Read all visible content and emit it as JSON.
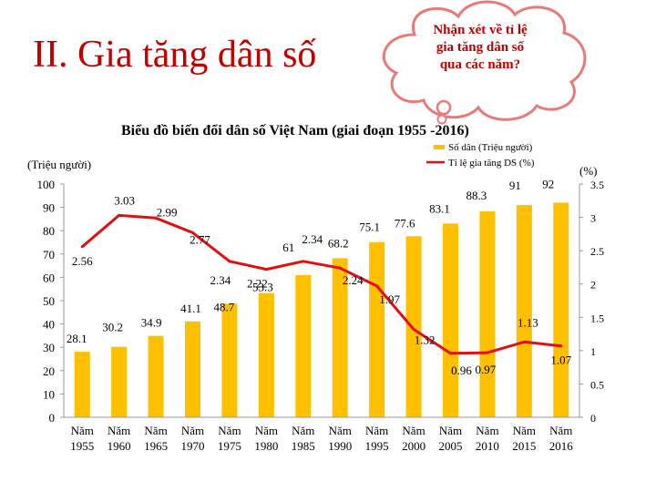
{
  "page": {
    "section_title": "II. Gia tăng dân số",
    "question": [
      "Nhận xét về tỉ lệ",
      "gia tăng dân số",
      "qua các năm?"
    ]
  },
  "colors": {
    "bar": "#ffc000",
    "line": "#e01010",
    "title": "#c00000",
    "cloud_border": "#e87a7a"
  },
  "chart_data": {
    "type": "bar",
    "title": "Biểu đồ biến đổi dân số Việt Nam (giai đoạn 1955 -2016)",
    "ylabel": "(Triệu người)",
    "y2label": "(%)",
    "ylim": [
      0,
      100
    ],
    "y2lim": [
      0,
      3.5
    ],
    "yticks": [
      0,
      10,
      20,
      30,
      40,
      50,
      60,
      70,
      80,
      90,
      100
    ],
    "y2ticks": [
      0,
      0.5,
      1,
      1.5,
      2,
      2.5,
      3,
      3.5
    ],
    "categories": [
      [
        "Năm",
        "1955"
      ],
      [
        "Năm",
        "1960"
      ],
      [
        "Năm",
        "1965"
      ],
      [
        "Năm",
        "1970"
      ],
      [
        "Năm",
        "1975"
      ],
      [
        "Năm",
        "1980"
      ],
      [
        "Năm",
        "1985"
      ],
      [
        "Năm",
        "1990"
      ],
      [
        "Năm",
        "1995"
      ],
      [
        "Năm",
        "2000"
      ],
      [
        "Năm",
        "2005"
      ],
      [
        "Năm",
        "2010"
      ],
      [
        "Năm",
        "2015"
      ],
      [
        "Năm",
        "2016"
      ]
    ],
    "series": [
      {
        "name": "Số dân (Triệu người)",
        "type": "bar",
        "axis": "left",
        "values": [
          28.1,
          30.2,
          34.9,
          41.1,
          48.7,
          53.3,
          61,
          68.2,
          75.1,
          77.6,
          83.1,
          88.3,
          91,
          92
        ],
        "labels": [
          "28.1",
          "30.2",
          "34.9",
          "41.1",
          "48.7",
          "53.3",
          "61",
          "68.2",
          "75.1",
          "77.6",
          "83.1",
          "88.3",
          "91",
          "92"
        ]
      },
      {
        "name": "Tỉ lệ gia tăng DS (%)",
        "type": "line",
        "axis": "right",
        "values": [
          2.56,
          3.03,
          2.99,
          2.77,
          2.34,
          2.22,
          2.34,
          2.24,
          1.97,
          1.32,
          0.96,
          0.97,
          1.13,
          1.07
        ],
        "labels": [
          "2.56",
          "3.03",
          "2.99",
          "2.77",
          "2.34",
          "2.22",
          "2.34",
          "2.24",
          "1.97",
          "1.32",
          "0.96",
          "0.97",
          "1.13",
          "1.07"
        ]
      }
    ]
  }
}
